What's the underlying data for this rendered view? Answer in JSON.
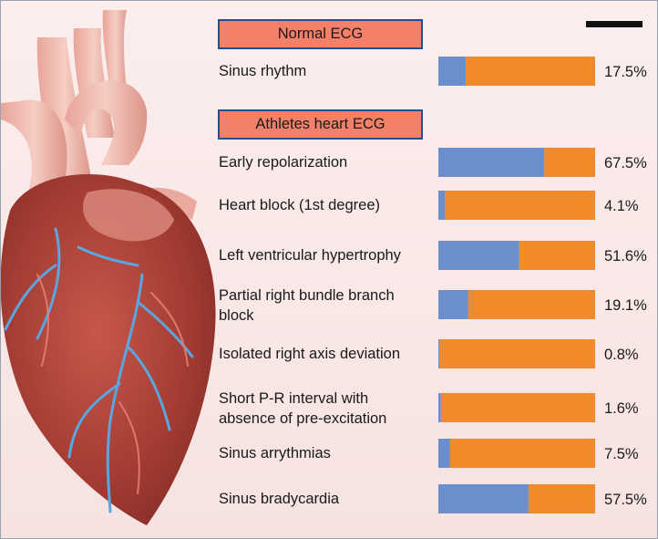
{
  "chart_data": {
    "type": "bar",
    "orientation": "horizontal",
    "stacked": true,
    "sections": [
      {
        "title": "Normal ECG",
        "start": 0
      },
      {
        "title": "Athletes heart ECG",
        "start": 1
      }
    ],
    "categories": [
      "Sinus rhythm",
      "Early repolarization",
      "Heart block (1st degree)",
      "Left ventricular hypertrophy",
      "Partial right bundle branch block",
      "Isolated right axis deviation",
      "Short P-R interval with absence of pre-excitation",
      "Sinus arrythmias",
      "Sinus bradycardia"
    ],
    "values": [
      17.5,
      67.5,
      4.1,
      51.6,
      19.1,
      0.8,
      1.6,
      7.5,
      57.5
    ],
    "value_labels": [
      "17.5%",
      "67.5%",
      "4.1%",
      "51.6%",
      "19.1%",
      "0.8%",
      "1.6%",
      "7.5%",
      "57.5%"
    ],
    "xlim": [
      0,
      100
    ],
    "colors": {
      "value": "#6b8fcc",
      "remainder": "#f08a2a",
      "section_box": "#f4806a",
      "section_border": "#1f4f8f"
    },
    "grid": false,
    "legend": "none"
  }
}
